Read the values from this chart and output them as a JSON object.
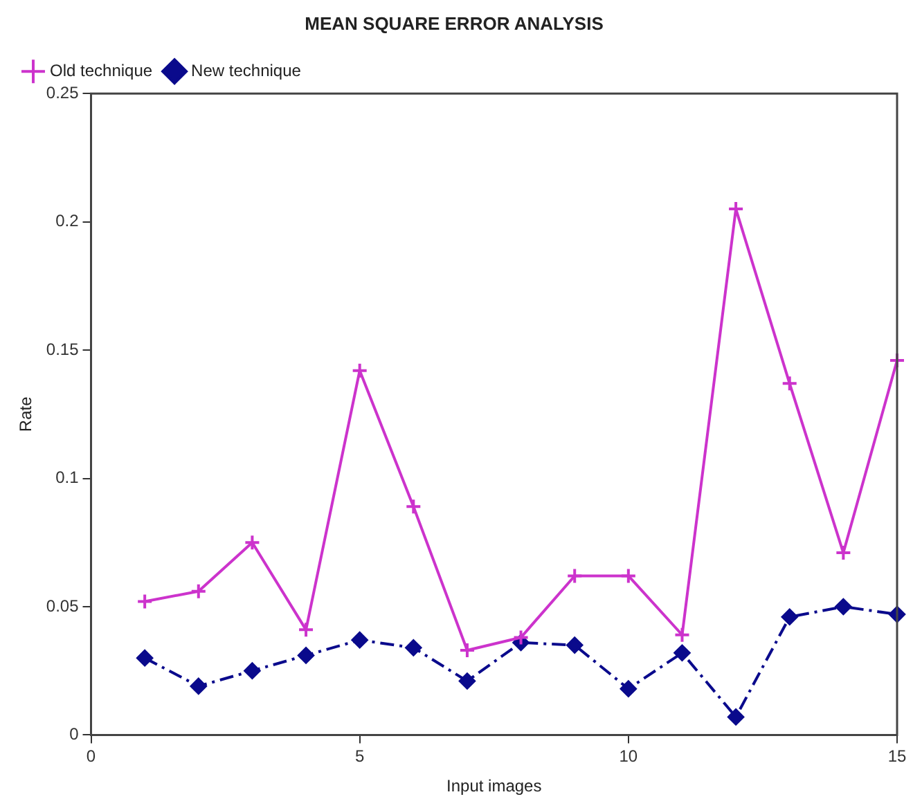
{
  "chart_data": {
    "type": "line",
    "title": "MEAN SQUARE ERROR ANALYSIS",
    "xlabel": "Input images",
    "ylabel": "Rate",
    "x": [
      1,
      2,
      3,
      4,
      5,
      6,
      7,
      8,
      9,
      10,
      11,
      12,
      13,
      14,
      15
    ],
    "series": [
      {
        "name": "Old technique",
        "color": "#cc33cc",
        "marker": "cross",
        "line_style": "solid",
        "values": [
          0.052,
          0.056,
          0.075,
          0.041,
          0.142,
          0.089,
          0.033,
          0.038,
          0.062,
          0.062,
          0.039,
          0.205,
          0.137,
          0.071,
          0.146
        ]
      },
      {
        "name": "New technique",
        "color": "#0a0a8c",
        "marker": "diamond",
        "line_style": "dashed",
        "values": [
          0.03,
          0.019,
          0.025,
          0.031,
          0.037,
          0.034,
          0.021,
          0.036,
          0.035,
          0.018,
          0.032,
          0.007,
          0.046,
          0.05,
          0.047
        ]
      }
    ],
    "xlim": [
      0,
      15
    ],
    "xticks": [
      0,
      5,
      10,
      15
    ],
    "ylim": [
      0,
      0.25
    ],
    "yticks": [
      0,
      0.05,
      0.1,
      0.15,
      0.2,
      0.25
    ],
    "grid": false,
    "legend": "top left"
  }
}
